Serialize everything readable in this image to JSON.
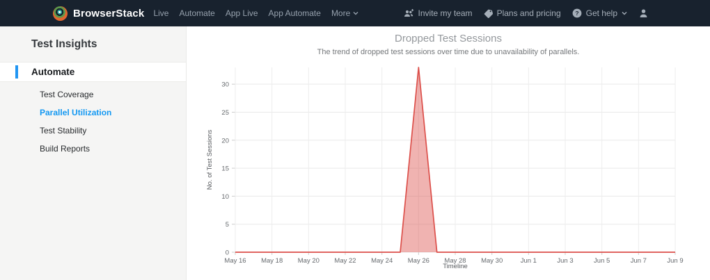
{
  "colors": {
    "navbar_bg": "#18222e",
    "accent_blue": "#1398f2",
    "sidebar_bg": "#f5f5f4"
  },
  "icons": {
    "logo": "browserstack-eye-icon",
    "invite": "people-plus-icon",
    "plans": "tag-icon",
    "help": "question-circle-icon",
    "user": "person-icon",
    "chevron": "chevron-down-icon"
  },
  "navbar": {
    "brand": "BrowserStack",
    "links": [
      {
        "label": "Live"
      },
      {
        "label": "Automate"
      },
      {
        "label": "App Live"
      },
      {
        "label": "App Automate"
      },
      {
        "label": "More"
      }
    ],
    "actions": {
      "invite": "Invite my team",
      "plans": "Plans and pricing",
      "help": "Get help"
    }
  },
  "sidebar": {
    "title": "Test Insights",
    "section": {
      "label": "Automate"
    },
    "items": [
      {
        "label": "Test Coverage",
        "active": false
      },
      {
        "label": "Parallel Utilization",
        "active": true
      },
      {
        "label": "Test Stability",
        "active": false
      },
      {
        "label": "Build Reports",
        "active": false
      }
    ]
  },
  "chart_data": {
    "type": "area",
    "title": "Dropped Test Sessions",
    "subtitle": "The trend of dropped test sessions over time due to unavailability of parallels.",
    "xlabel": "Timeline",
    "ylabel": "No. of Test Sessions",
    "x": [
      "May 16",
      "May 17",
      "May 18",
      "May 19",
      "May 20",
      "May 21",
      "May 22",
      "May 23",
      "May 24",
      "May 25",
      "May 26",
      "May 27",
      "May 28",
      "May 29",
      "May 30",
      "May 31",
      "Jun 1",
      "Jun 2",
      "Jun 3",
      "Jun 4",
      "Jun 5",
      "Jun 6",
      "Jun 7",
      "Jun 8",
      "Jun 9"
    ],
    "values": [
      0,
      0,
      0,
      0,
      0,
      0,
      0,
      0,
      0,
      0,
      33,
      0,
      0,
      0,
      0,
      0,
      0,
      0,
      0,
      0,
      0,
      0,
      0,
      0,
      0
    ],
    "ylim": [
      0,
      33
    ],
    "yticks": [
      0,
      5,
      10,
      15,
      20,
      25,
      30
    ],
    "xtick_every": 2,
    "grid": true,
    "legend": false,
    "line_color": "#dc4f4a",
    "fill_color": "rgba(220,75,70,0.42)"
  }
}
